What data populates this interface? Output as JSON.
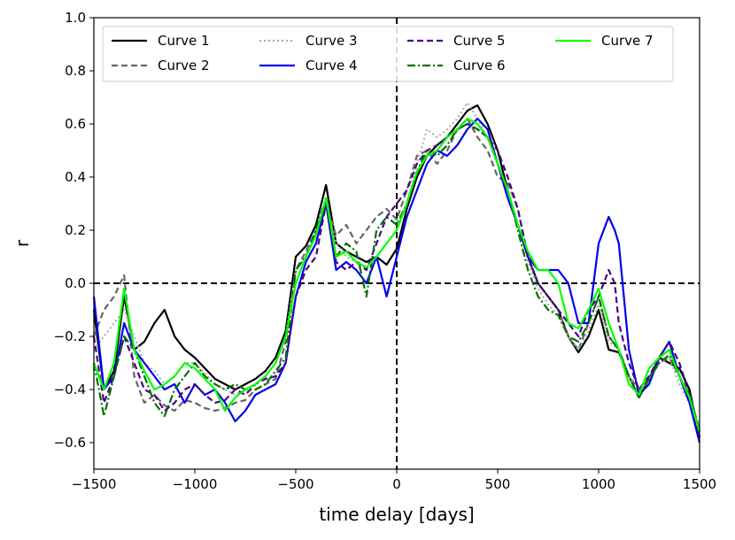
{
  "chart_data": {
    "type": "line",
    "xlabel": "time delay [days]",
    "ylabel": "r",
    "xlim": [
      -1500,
      1500
    ],
    "ylim": [
      -0.7,
      1.0
    ],
    "xticks": [
      -1500,
      -1000,
      -500,
      0,
      500,
      1000,
      1500
    ],
    "yticks": [
      -0.6,
      -0.4,
      -0.2,
      0.0,
      0.2,
      0.4,
      0.6,
      0.8,
      1.0
    ],
    "xtick_labels": [
      "−1500",
      "−1000",
      "−500",
      "0",
      "500",
      "1000",
      "1500"
    ],
    "ytick_labels": [
      "−0.6",
      "−0.4",
      "−0.2",
      "0.0",
      "0.2",
      "0.4",
      "0.6",
      "0.8",
      "1.0"
    ],
    "reference_lines": [
      {
        "orientation": "horizontal",
        "value": 0.0,
        "style": "dashed",
        "color": "#000000"
      },
      {
        "orientation": "vertical",
        "value": 0,
        "style": "dashed",
        "color": "#000000"
      }
    ],
    "legend": {
      "position": "top-left",
      "columns": 4
    },
    "series": [
      {
        "name": "Curve 1",
        "color": "#000000",
        "dash": "solid",
        "x": [
          -1500,
          -1450,
          -1400,
          -1350,
          -1300,
          -1250,
          -1200,
          -1150,
          -1100,
          -1050,
          -1000,
          -950,
          -900,
          -850,
          -800,
          -750,
          -700,
          -650,
          -600,
          -550,
          -500,
          -450,
          -400,
          -350,
          -300,
          -250,
          -200,
          -150,
          -100,
          -50,
          0,
          50,
          100,
          150,
          200,
          250,
          300,
          350,
          400,
          450,
          500,
          550,
          600,
          650,
          700,
          750,
          800,
          850,
          900,
          950,
          1000,
          1050,
          1100,
          1150,
          1200,
          1250,
          1300,
          1350,
          1400,
          1450,
          1500
        ],
        "y": [
          -0.1,
          -0.4,
          -0.33,
          -0.05,
          -0.25,
          -0.22,
          -0.15,
          -0.1,
          -0.2,
          -0.25,
          -0.28,
          -0.32,
          -0.36,
          -0.38,
          -0.4,
          -0.38,
          -0.36,
          -0.33,
          -0.28,
          -0.18,
          0.1,
          0.14,
          0.22,
          0.37,
          0.15,
          0.12,
          0.1,
          0.08,
          0.1,
          0.07,
          0.13,
          0.28,
          0.4,
          0.48,
          0.52,
          0.55,
          0.6,
          0.65,
          0.67,
          0.6,
          0.5,
          0.35,
          0.22,
          0.1,
          0.0,
          -0.05,
          -0.1,
          -0.2,
          -0.26,
          -0.2,
          -0.1,
          -0.25,
          -0.26,
          -0.35,
          -0.43,
          -0.36,
          -0.28,
          -0.3,
          -0.32,
          -0.4,
          -0.58
        ]
      },
      {
        "name": "Curve 2",
        "color": "#666666",
        "dash": "dashed",
        "x": [
          -1500,
          -1450,
          -1400,
          -1350,
          -1300,
          -1250,
          -1200,
          -1150,
          -1100,
          -1050,
          -1000,
          -950,
          -900,
          -850,
          -800,
          -750,
          -700,
          -650,
          -600,
          -550,
          -500,
          -450,
          -400,
          -350,
          -300,
          -250,
          -200,
          -150,
          -100,
          -50,
          0,
          50,
          100,
          150,
          200,
          250,
          300,
          350,
          400,
          450,
          500,
          550,
          600,
          650,
          700,
          750,
          800,
          850,
          900,
          950,
          1000,
          1050,
          1100,
          1150,
          1200,
          1250,
          1300,
          1350,
          1400,
          1450,
          1500
        ],
        "y": [
          -0.2,
          -0.1,
          -0.05,
          0.03,
          -0.35,
          -0.45,
          -0.42,
          -0.46,
          -0.48,
          -0.44,
          -0.45,
          -0.47,
          -0.48,
          -0.47,
          -0.45,
          -0.44,
          -0.4,
          -0.38,
          -0.36,
          -0.22,
          0.05,
          0.12,
          0.2,
          0.3,
          0.18,
          0.22,
          0.15,
          0.2,
          0.25,
          0.28,
          0.24,
          0.35,
          0.48,
          0.5,
          0.45,
          0.5,
          0.58,
          0.62,
          0.55,
          0.5,
          0.4,
          0.38,
          0.28,
          0.1,
          0.0,
          -0.05,
          -0.1,
          -0.2,
          -0.25,
          -0.15,
          -0.05,
          -0.2,
          -0.25,
          -0.35,
          -0.4,
          -0.36,
          -0.3,
          -0.28,
          -0.35,
          -0.42,
          -0.55
        ]
      },
      {
        "name": "Curve 3",
        "color": "#aaaaaa",
        "dash": "dotted",
        "x": [
          -1500,
          -1450,
          -1400,
          -1350,
          -1300,
          -1250,
          -1200,
          -1150,
          -1100,
          -1050,
          -1000,
          -950,
          -900,
          -850,
          -800,
          -750,
          -700,
          -650,
          -600,
          -550,
          -500,
          -450,
          -400,
          -350,
          -300,
          -250,
          -200,
          -150,
          -100,
          -50,
          0,
          50,
          100,
          150,
          200,
          250,
          300,
          350,
          400,
          450,
          500,
          550,
          600,
          650,
          700,
          750,
          800,
          850,
          900,
          950,
          1000,
          1050,
          1100,
          1150,
          1200,
          1250,
          1300,
          1350,
          1400,
          1450,
          1500
        ],
        "y": [
          -0.25,
          -0.2,
          -0.15,
          -0.1,
          -0.2,
          -0.3,
          -0.33,
          -0.38,
          -0.35,
          -0.3,
          -0.3,
          -0.34,
          -0.38,
          -0.4,
          -0.42,
          -0.4,
          -0.38,
          -0.35,
          -0.3,
          -0.2,
          0.05,
          0.1,
          0.2,
          0.3,
          0.15,
          0.1,
          0.08,
          0.06,
          0.1,
          0.15,
          0.2,
          0.3,
          0.45,
          0.58,
          0.55,
          0.58,
          0.62,
          0.68,
          0.62,
          0.55,
          0.45,
          0.35,
          0.22,
          0.08,
          -0.02,
          -0.08,
          -0.12,
          -0.2,
          -0.25,
          -0.18,
          -0.08,
          -0.22,
          -0.25,
          -0.35,
          -0.42,
          -0.36,
          -0.3,
          -0.28,
          -0.38,
          -0.45,
          -0.57
        ]
      },
      {
        "name": "Curve 4",
        "color": "#0000ee",
        "dash": "solid",
        "x": [
          -1500,
          -1450,
          -1400,
          -1350,
          -1300,
          -1250,
          -1200,
          -1150,
          -1100,
          -1050,
          -1000,
          -950,
          -900,
          -850,
          -800,
          -750,
          -700,
          -650,
          -600,
          -550,
          -500,
          -450,
          -400,
          -350,
          -300,
          -250,
          -200,
          -150,
          -100,
          -50,
          0,
          50,
          100,
          150,
          200,
          250,
          300,
          350,
          400,
          450,
          500,
          550,
          600,
          650,
          700,
          750,
          800,
          850,
          900,
          950,
          1000,
          1050,
          1080,
          1100,
          1150,
          1200,
          1250,
          1300,
          1350,
          1400,
          1450,
          1500
        ],
        "y": [
          -0.05,
          -0.4,
          -0.35,
          -0.15,
          -0.25,
          -0.3,
          -0.35,
          -0.4,
          -0.38,
          -0.45,
          -0.38,
          -0.42,
          -0.4,
          -0.45,
          -0.52,
          -0.48,
          -0.42,
          -0.4,
          -0.38,
          -0.3,
          -0.05,
          0.08,
          0.15,
          0.3,
          0.05,
          0.08,
          0.05,
          0.0,
          0.1,
          -0.05,
          0.1,
          0.25,
          0.35,
          0.45,
          0.5,
          0.48,
          0.52,
          0.58,
          0.62,
          0.58,
          0.45,
          0.32,
          0.22,
          0.1,
          0.05,
          0.05,
          0.05,
          0.0,
          -0.15,
          -0.15,
          0.15,
          0.25,
          0.2,
          0.15,
          -0.25,
          -0.42,
          -0.38,
          -0.28,
          -0.22,
          -0.35,
          -0.45,
          -0.6
        ]
      },
      {
        "name": "Curve 5",
        "color": "#4b0082",
        "dash": "dashed",
        "x": [
          -1500,
          -1450,
          -1400,
          -1350,
          -1300,
          -1250,
          -1200,
          -1150,
          -1100,
          -1050,
          -1000,
          -950,
          -900,
          -850,
          -800,
          -750,
          -700,
          -650,
          -600,
          -550,
          -500,
          -450,
          -400,
          -350,
          -300,
          -250,
          -200,
          -150,
          -100,
          -50,
          0,
          50,
          100,
          150,
          200,
          250,
          300,
          350,
          400,
          450,
          500,
          550,
          600,
          650,
          700,
          750,
          800,
          850,
          900,
          950,
          1000,
          1050,
          1080,
          1100,
          1150,
          1200,
          1250,
          1300,
          1350,
          1400,
          1450,
          1500
        ],
        "y": [
          -0.2,
          -0.45,
          -0.35,
          -0.2,
          -0.3,
          -0.4,
          -0.42,
          -0.48,
          -0.45,
          -0.4,
          -0.38,
          -0.42,
          -0.45,
          -0.44,
          -0.4,
          -0.42,
          -0.38,
          -0.36,
          -0.35,
          -0.3,
          -0.05,
          0.05,
          0.1,
          0.3,
          0.08,
          0.05,
          0.08,
          0.05,
          0.15,
          0.25,
          0.3,
          0.35,
          0.45,
          0.5,
          0.52,
          0.55,
          0.58,
          0.6,
          0.58,
          0.55,
          0.5,
          0.4,
          0.28,
          0.1,
          0.0,
          -0.05,
          -0.1,
          -0.15,
          -0.2,
          -0.1,
          -0.05,
          0.05,
          0.0,
          -0.15,
          -0.3,
          -0.4,
          -0.35,
          -0.28,
          -0.22,
          -0.3,
          -0.42,
          -0.58
        ]
      },
      {
        "name": "Curve 6",
        "color": "#007000",
        "dash": "dashdot",
        "x": [
          -1500,
          -1450,
          -1400,
          -1350,
          -1300,
          -1250,
          -1200,
          -1150,
          -1100,
          -1050,
          -1000,
          -950,
          -900,
          -850,
          -800,
          -750,
          -700,
          -650,
          -600,
          -550,
          -500,
          -450,
          -400,
          -350,
          -300,
          -250,
          -200,
          -150,
          -100,
          -50,
          0,
          50,
          100,
          150,
          200,
          250,
          300,
          350,
          400,
          450,
          500,
          550,
          600,
          650,
          700,
          750,
          800,
          850,
          900,
          950,
          1000,
          1050,
          1100,
          1150,
          1200,
          1250,
          1300,
          1350,
          1400,
          1450,
          1500
        ],
        "y": [
          -0.3,
          -0.5,
          -0.35,
          -0.2,
          -0.25,
          -0.35,
          -0.45,
          -0.5,
          -0.4,
          -0.35,
          -0.3,
          -0.35,
          -0.38,
          -0.4,
          -0.38,
          -0.4,
          -0.4,
          -0.38,
          -0.33,
          -0.28,
          0.05,
          0.1,
          0.2,
          0.32,
          0.1,
          0.15,
          0.12,
          -0.05,
          0.2,
          0.25,
          0.22,
          0.3,
          0.42,
          0.5,
          0.48,
          0.52,
          0.58,
          0.6,
          0.58,
          0.55,
          0.45,
          0.35,
          0.2,
          0.05,
          -0.05,
          -0.1,
          -0.12,
          -0.2,
          -0.22,
          -0.15,
          -0.05,
          -0.2,
          -0.25,
          -0.35,
          -0.43,
          -0.36,
          -0.3,
          -0.27,
          -0.35,
          -0.42,
          -0.56
        ]
      },
      {
        "name": "Curve 7",
        "color": "#00ff00",
        "dash": "solid",
        "x": [
          -1500,
          -1450,
          -1400,
          -1350,
          -1300,
          -1250,
          -1200,
          -1150,
          -1100,
          -1050,
          -1000,
          -950,
          -900,
          -850,
          -800,
          -750,
          -700,
          -650,
          -600,
          -550,
          -500,
          -450,
          -400,
          -350,
          -300,
          -250,
          -200,
          -150,
          -100,
          -50,
          0,
          50,
          100,
          150,
          200,
          250,
          300,
          350,
          400,
          450,
          500,
          550,
          600,
          650,
          700,
          750,
          800,
          850,
          900,
          950,
          1000,
          1050,
          1100,
          1150,
          1200,
          1250,
          1300,
          1350,
          1400,
          1450,
          1500
        ],
        "y": [
          -0.3,
          -0.4,
          -0.3,
          -0.02,
          -0.25,
          -0.33,
          -0.4,
          -0.38,
          -0.35,
          -0.3,
          -0.32,
          -0.36,
          -0.4,
          -0.48,
          -0.43,
          -0.4,
          -0.38,
          -0.35,
          -0.3,
          -0.2,
          0.0,
          0.1,
          0.18,
          0.32,
          0.1,
          0.12,
          0.08,
          0.06,
          0.1,
          0.15,
          0.2,
          0.3,
          0.42,
          0.48,
          0.5,
          0.55,
          0.58,
          0.62,
          0.6,
          0.55,
          0.45,
          0.35,
          0.22,
          0.12,
          0.05,
          0.05,
          0.0,
          -0.15,
          -0.17,
          -0.1,
          -0.02,
          -0.15,
          -0.25,
          -0.38,
          -0.42,
          -0.32,
          -0.28,
          -0.25,
          -0.35,
          -0.43,
          -0.56
        ]
      }
    ]
  }
}
